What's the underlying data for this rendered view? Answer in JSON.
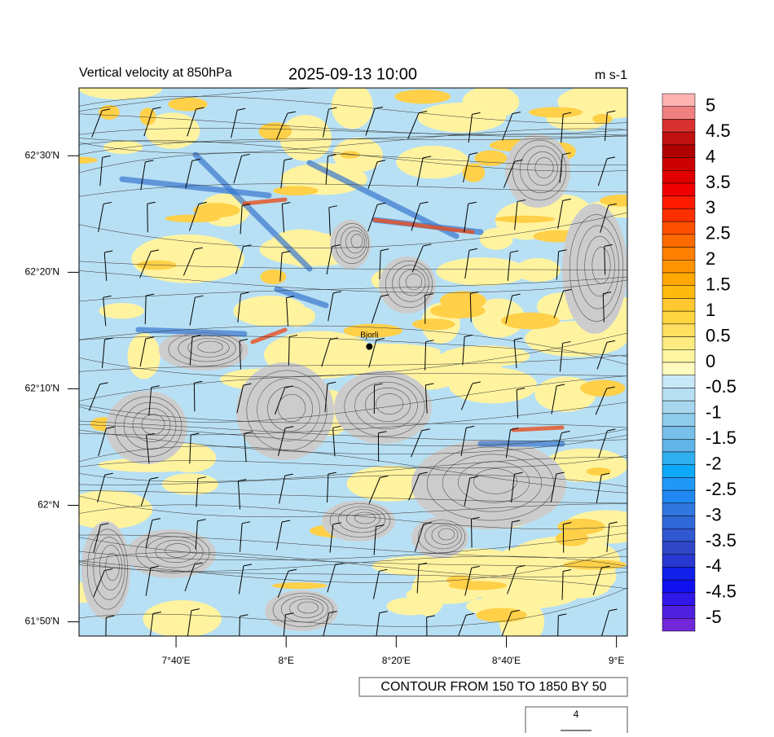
{
  "header": {
    "title": "Vertical velocity at 850hPa",
    "time": "2025-09-13 10:00",
    "units": "m s-1"
  },
  "map": {
    "lonlim": [
      7.373,
      9.033
    ],
    "latlim": [
      61.813,
      62.597
    ],
    "lat_ticks": [
      {
        "value": 62.5,
        "label": "62°30'N"
      },
      {
        "value": 62.3333,
        "label": "62°20'N"
      },
      {
        "value": 62.1667,
        "label": "62°10'N"
      },
      {
        "value": 62,
        "label": "62°N"
      },
      {
        "value": 61.8333,
        "label": "61°50'N"
      }
    ],
    "lon_ticks": [
      {
        "value": 7.6667,
        "label": "7°40'E"
      },
      {
        "value": 8,
        "label": "8°E"
      },
      {
        "value": 8.3333,
        "label": "8°20'E"
      },
      {
        "value": 8.6667,
        "label": "8°40'E"
      },
      {
        "value": 9,
        "label": "9°E"
      }
    ],
    "station": {
      "name": "Bjorli",
      "lon": 8.252,
      "lat": 62.227
    }
  },
  "colorbar": {
    "labels": [
      5,
      4.5,
      4,
      3.5,
      3,
      2.5,
      2,
      1.5,
      1,
      0.5,
      0,
      -0.5,
      -1,
      -1.5,
      -2,
      -2.5,
      -3,
      -3.5,
      -4,
      -4.5,
      -5
    ],
    "colors": [
      "#ffb3b3",
      "#f08080",
      "#d83030",
      "#c01010",
      "#b00000",
      "#cc0000",
      "#e00000",
      "#f00000",
      "#ff1a00",
      "#ff3000",
      "#ff5000",
      "#ff6a00",
      "#ff8000",
      "#ff9400",
      "#ffa800",
      "#ffba10",
      "#ffc830",
      "#ffd540",
      "#ffe060",
      "#ffec80",
      "#fff5a0",
      "#fffbc0",
      "#c8e8f8",
      "#b8e0f4",
      "#a8d8f0",
      "#90ccec",
      "#78c0ea",
      "#60b4e8",
      "#30b0f0",
      "#10a8f8",
      "#2098f8",
      "#2088f0",
      "#3078e0",
      "#3068d8",
      "#3058d0",
      "#3048c8",
      "#2838d0",
      "#1020e8",
      "#1010f0",
      "#3018e8",
      "#5020e0",
      "#7028d8"
    ]
  },
  "footer": {
    "contour_note": "CONTOUR FROM 150 TO 1850 BY 50",
    "wind_reference": "4"
  }
}
